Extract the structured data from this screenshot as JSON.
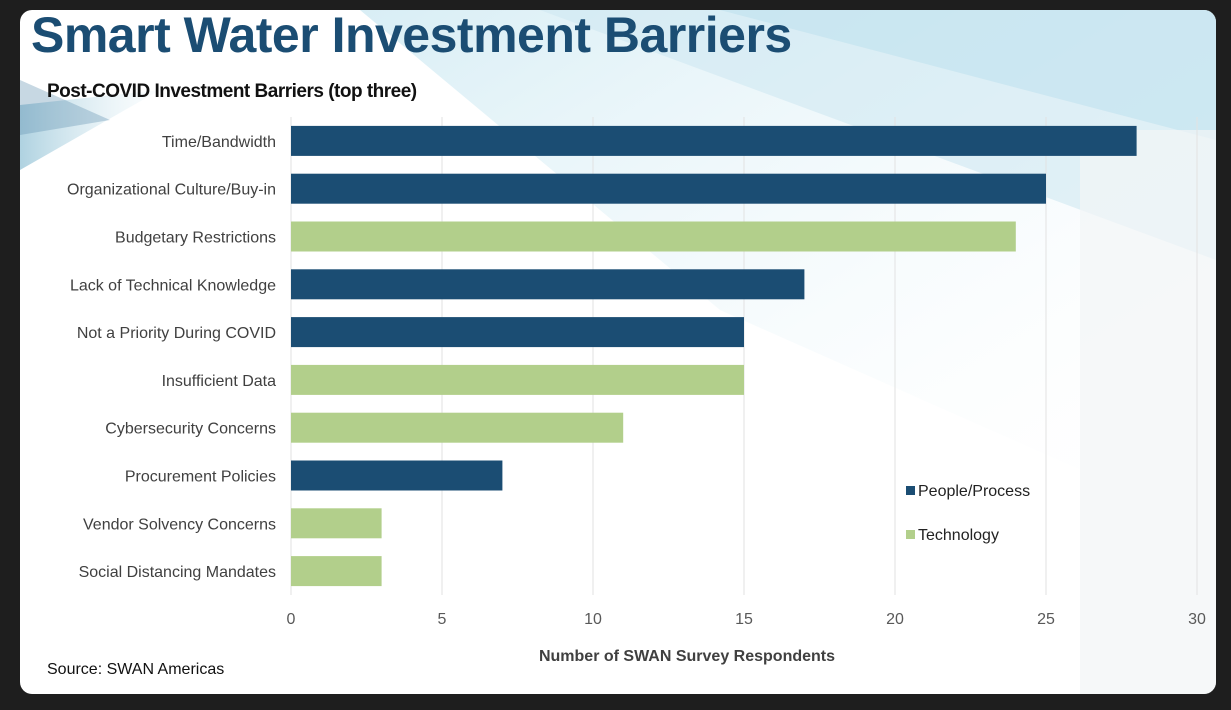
{
  "title": "Smart Water Investment Barriers",
  "source": "Source: SWAN Americas",
  "colors": {
    "people_process": "#1b4d73",
    "technology": "#b2cf8b",
    "title": "#1b4d73"
  },
  "chart_data": {
    "type": "bar",
    "orientation": "horizontal",
    "title": "Post-COVID Investment Barriers (top three)",
    "xlabel": "Number of SWAN Survey Respondents",
    "ylabel": "",
    "xlim": [
      0,
      30
    ],
    "xticks": [
      0,
      5,
      10,
      15,
      20,
      25,
      30
    ],
    "grid": "vertical",
    "legend_position": "bottom-right",
    "categories": [
      "Time/Bandwidth",
      "Organizational Culture/Buy-in",
      "Budgetary Restrictions",
      "Lack of Technical Knowledge",
      "Not a Priority During COVID",
      "Insufficient Data",
      "Cybersecurity Concerns",
      "Procurement Policies",
      "Vendor Solvency Concerns",
      "Social Distancing Mandates"
    ],
    "values": [
      28,
      25,
      24,
      17,
      15,
      15,
      11,
      7,
      3,
      3
    ],
    "groups": [
      "People/Process",
      "People/Process",
      "Technology",
      "People/Process",
      "People/Process",
      "Technology",
      "Technology",
      "People/Process",
      "Technology",
      "Technology"
    ],
    "series": [
      {
        "name": "People/Process",
        "color": "#1b4d73"
      },
      {
        "name": "Technology",
        "color": "#b2cf8b"
      }
    ]
  }
}
